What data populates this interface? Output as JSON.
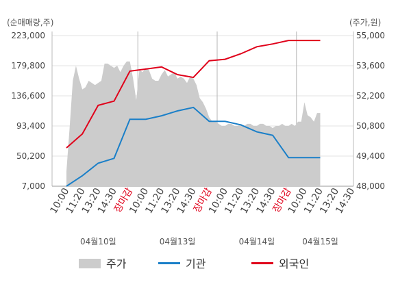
{
  "chart_data": {
    "type": "line",
    "left_axis_label": "(순매매량,주)",
    "right_axis_label": "(주가,원)",
    "left_ticks": [
      "223,000",
      "179,800",
      "136,600",
      "93,400",
      "50,200",
      "7,000"
    ],
    "right_ticks": [
      "55,000",
      "53,600",
      "52,200",
      "50,800",
      "49,400",
      "48,000"
    ],
    "left_range": [
      7000,
      223000
    ],
    "right_range": [
      48000,
      55000
    ],
    "x_labels": [
      {
        "text": "10:00",
        "red": false
      },
      {
        "text": "11:20",
        "red": false
      },
      {
        "text": "13:20",
        "red": false
      },
      {
        "text": "14:30",
        "red": false
      },
      {
        "text": "장마감",
        "red": true
      },
      {
        "text": "10:00",
        "red": false
      },
      {
        "text": "11:20",
        "red": false
      },
      {
        "text": "13:20",
        "red": false
      },
      {
        "text": "14:30",
        "red": false
      },
      {
        "text": "장마감",
        "red": true
      },
      {
        "text": "10:00",
        "red": false
      },
      {
        "text": "11:20",
        "red": false
      },
      {
        "text": "13:20",
        "red": false
      },
      {
        "text": "14:30",
        "red": false
      },
      {
        "text": "장마감",
        "red": true
      },
      {
        "text": "10:00",
        "red": false
      },
      {
        "text": "11:20",
        "red": false
      },
      {
        "text": "13:20",
        "red": false
      },
      {
        "text": "14:30",
        "red": false
      }
    ],
    "dates": [
      {
        "text": "04월10일",
        "at_label": 2
      },
      {
        "text": "04월13일",
        "at_label": 7
      },
      {
        "text": "04월14일",
        "at_label": 12
      },
      {
        "text": "04월15일",
        "at_label": 16
      }
    ],
    "day_dividers_at_label": [
      4.5,
      9.5,
      14.5
    ],
    "legend": [
      {
        "name": "주가",
        "type": "area",
        "color": "#cccccc"
      },
      {
        "name": "기관",
        "type": "line",
        "color": "#1a7fc8"
      },
      {
        "name": "외국인",
        "type": "line",
        "color": "#e0001a"
      }
    ],
    "price_area": {
      "x": [
        0,
        0.2,
        0.4,
        0.6,
        0.8,
        1.0,
        1.2,
        1.4,
        1.6,
        1.8,
        2.0,
        2.2,
        2.4,
        2.6,
        2.8,
        3.0,
        3.2,
        3.4,
        3.6,
        3.8,
        4.0,
        4.2,
        4.4,
        4.6,
        4.8,
        5.0,
        5.2,
        5.4,
        5.6,
        5.8,
        6.0,
        6.2,
        6.4,
        6.6,
        6.8,
        7.0,
        7.2,
        7.4,
        7.6,
        7.8,
        8.0,
        8.2,
        8.4,
        8.6,
        8.8,
        9.0,
        9.2,
        9.4,
        9.6,
        9.8,
        10.0,
        10.2,
        10.4,
        10.6,
        10.8,
        11.0,
        11.2,
        11.4,
        11.6,
        11.8,
        12.0,
        12.2,
        12.4,
        12.6,
        12.8,
        13.0,
        13.2,
        13.4,
        13.6,
        13.8,
        14.0,
        14.2,
        14.4,
        14.6,
        14.8,
        15.0,
        15.2,
        15.4,
        15.6,
        15.8,
        16.0
      ],
      "y": [
        48700,
        50700,
        52900,
        53600,
        53000,
        52500,
        52600,
        52900,
        52800,
        52700,
        52800,
        52900,
        53700,
        53700,
        53600,
        53500,
        53600,
        53300,
        53600,
        53800,
        53800,
        53000,
        52000,
        53400,
        53300,
        53500,
        53400,
        53000,
        52900,
        52900,
        53200,
        53400,
        53100,
        53200,
        53300,
        53000,
        53100,
        53000,
        52800,
        53100,
        53000,
        52700,
        52100,
        51900,
        51600,
        51200,
        51000,
        51000,
        50900,
        50800,
        50800,
        50900,
        50900,
        50800,
        50800,
        50900,
        50800,
        50900,
        50900,
        50800,
        50800,
        50900,
        50900,
        50800,
        50800,
        50700,
        50800,
        50800,
        50900,
        50800,
        50800,
        50900,
        50800,
        51000,
        51000,
        51900,
        51300,
        51200,
        51000,
        51400,
        51400
      ]
    },
    "series": [
      {
        "name": "기관",
        "x": [
          0,
          1,
          2,
          3,
          4,
          5,
          6,
          7,
          8,
          9,
          10,
          11,
          12,
          13,
          14,
          15,
          16
        ],
        "y": [
          7000,
          22000,
          40000,
          47000,
          103000,
          103000,
          108000,
          115000,
          120000,
          100000,
          100000,
          95000,
          85000,
          80000,
          48000,
          48000,
          48000
        ]
      },
      {
        "name": "외국인",
        "x": [
          0,
          1,
          2,
          3,
          4,
          5,
          6,
          7,
          8,
          9,
          10,
          11,
          12,
          13,
          14,
          15,
          16
        ],
        "y": [
          62000,
          82000,
          123000,
          129000,
          172000,
          175000,
          178000,
          167000,
          163000,
          187000,
          189000,
          197000,
          207000,
          211000,
          216000,
          216000,
          216000
        ]
      }
    ]
  }
}
